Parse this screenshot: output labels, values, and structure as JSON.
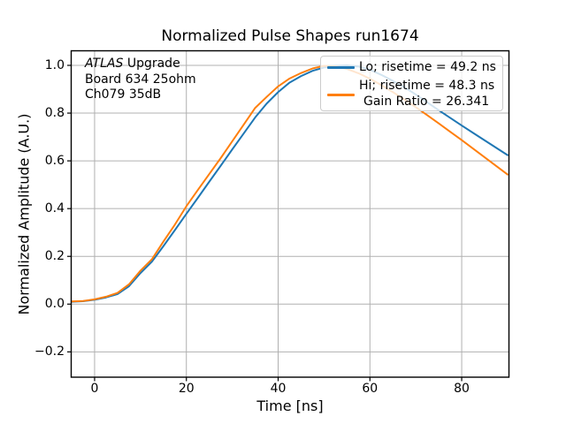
{
  "figure": {
    "title": "Normalized Pulse Shapes run1674",
    "annotation": {
      "experiment": "ATLAS",
      "line1_rest": " Upgrade",
      "line2": "Board 634 25ohm",
      "line3": "Ch079 35dB"
    },
    "legend": {
      "lo_label": "Lo; risetime = 49.2 ns",
      "hi_label": "Hi; risetime = 48.3 ns",
      "gain_label": "Gain Ratio = 26.341"
    }
  },
  "chart_data": {
    "type": "line",
    "title": "Normalized Pulse Shapes run1674",
    "xlabel": "Time [ns]",
    "ylabel": "Normalized Amplitude (A.U.)",
    "xlim": [
      -5.1,
      90.3
    ],
    "ylim": [
      -0.306,
      1.061
    ],
    "grid": true,
    "legend_position": "upper right",
    "xticks": {
      "values": [
        0,
        20,
        40,
        60,
        80
      ],
      "labels": [
        "0",
        "20",
        "40",
        "60",
        "80"
      ]
    },
    "yticks": {
      "values": [
        -0.2,
        0.0,
        0.2,
        0.4,
        0.6,
        0.8,
        1.0
      ],
      "labels": [
        "−0.2",
        "0.0",
        "0.2",
        "0.4",
        "0.6",
        "0.8",
        "1.0"
      ]
    },
    "x": [
      -5,
      -2.5,
      0,
      2.5,
      5,
      7.5,
      10,
      12.5,
      15,
      17.5,
      20,
      22.5,
      25,
      27.5,
      30,
      32.5,
      35,
      37.5,
      40,
      42.5,
      45,
      47.5,
      50,
      52.5,
      55,
      57.5,
      60,
      62.5,
      65,
      67.5,
      70,
      72.5,
      75,
      77.5,
      80,
      82.5,
      85,
      87.5,
      90
    ],
    "series": [
      {
        "name": "Lo; risetime = 49.2 ns",
        "color": "#1f77b4",
        "risetime_ns": 49.2,
        "values": [
          0.01,
          0.012,
          0.018,
          0.028,
          0.042,
          0.075,
          0.13,
          0.178,
          0.243,
          0.31,
          0.378,
          0.445,
          0.513,
          0.58,
          0.648,
          0.715,
          0.782,
          0.84,
          0.888,
          0.928,
          0.955,
          0.977,
          0.991,
          0.998,
          1.0,
          0.995,
          0.982,
          0.96,
          0.935,
          0.908,
          0.878,
          0.845,
          0.812,
          0.78,
          0.748,
          0.717,
          0.686,
          0.655,
          0.624
        ]
      },
      {
        "name": "Hi; risetime = 48.3 ns  Gain Ratio = 26.341",
        "color": "#ff7f0e",
        "risetime_ns": 48.3,
        "gain_ratio": 26.341,
        "values": [
          0.011,
          0.013,
          0.02,
          0.031,
          0.047,
          0.083,
          0.14,
          0.188,
          0.262,
          0.333,
          0.41,
          0.478,
          0.545,
          0.612,
          0.682,
          0.752,
          0.822,
          0.868,
          0.912,
          0.945,
          0.968,
          0.987,
          0.998,
          0.996,
          0.985,
          0.967,
          0.944,
          0.917,
          0.888,
          0.857,
          0.825,
          0.791,
          0.757,
          0.722,
          0.687,
          0.651,
          0.615,
          0.579,
          0.543
        ]
      }
    ],
    "annotation_lines": [
      "ATLAS Upgrade",
      "Board 634 25ohm",
      "Ch079 35dB"
    ]
  },
  "colors": {
    "lo_line": "#1f77b4",
    "hi_line": "#ff7f0e",
    "grid": "#b0b0b0",
    "frame": "#000000",
    "legend_edge": "#cccccc"
  }
}
